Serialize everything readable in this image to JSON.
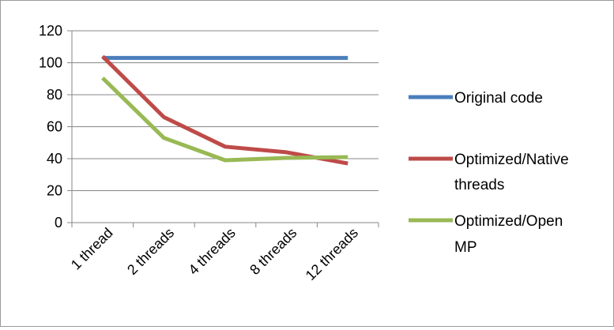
{
  "chart_data": {
    "type": "line",
    "title": "",
    "xlabel": "",
    "ylabel": "",
    "categories": [
      "1 thread",
      "2 threads",
      "4 threads",
      "8 threads",
      "12 threads"
    ],
    "ylim": [
      0,
      120
    ],
    "yticks": [
      0,
      20,
      40,
      60,
      80,
      100,
      120
    ],
    "grid": true,
    "legend": "right",
    "series": [
      {
        "name": "Original code",
        "color": "#4a7ebb",
        "values": [
          103,
          103,
          103,
          103,
          103
        ]
      },
      {
        "name": "Optimized/Native threads",
        "color": "#be4b48",
        "values": [
          104,
          66,
          47.5,
          44,
          37
        ]
      },
      {
        "name": "Optimized/Open MP",
        "color": "#98b954",
        "values": [
          90.5,
          53,
          39,
          40.5,
          41
        ]
      }
    ]
  }
}
